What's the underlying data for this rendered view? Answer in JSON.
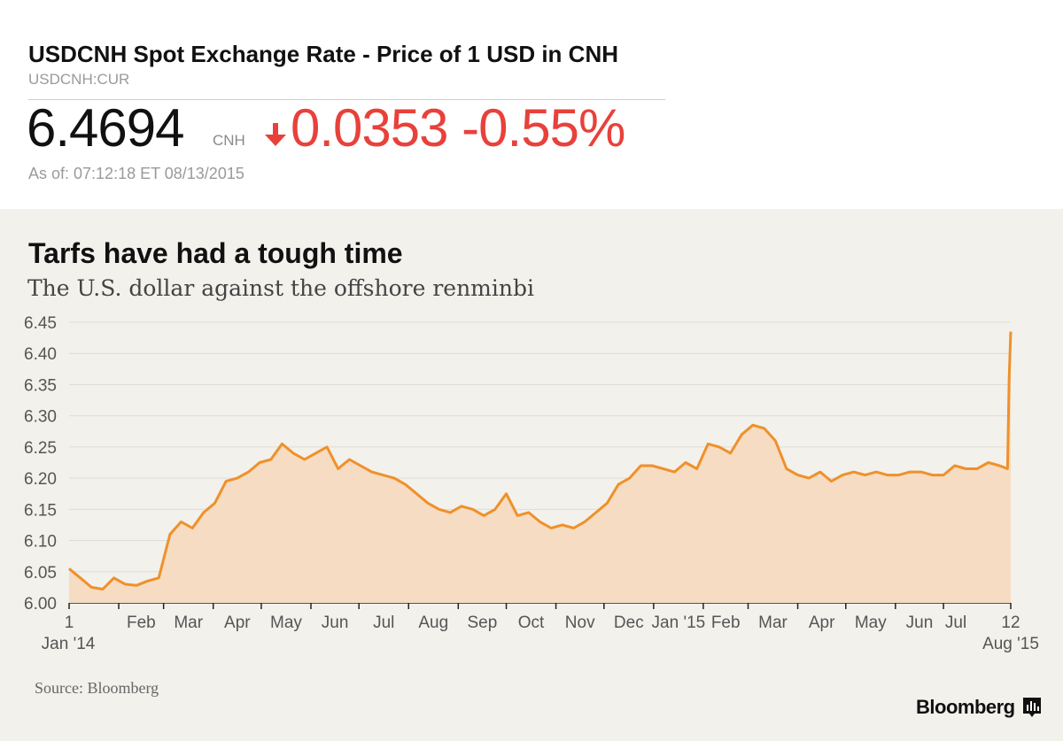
{
  "quote": {
    "title": "USDCNH Spot Exchange Rate - Price of 1 USD in CNH",
    "ticker": "USDCNH:CUR",
    "price": "6.4694",
    "currency": "CNH",
    "change": "0.0353 -0.55%",
    "as_of": "As of: 07:12:18 ET 08/13/2015",
    "change_color": "#e8413b",
    "arrow_icon": "down-arrow-icon"
  },
  "chart_data": {
    "type": "area",
    "title": "Tarfs have had a tough time",
    "subtitle": "The U.S. dollar against the offshore renminbi",
    "xlabel": "",
    "ylabel": "",
    "ylim": [
      6.0,
      6.45
    ],
    "yticks": [
      "6.45",
      "6.40",
      "6.35",
      "6.30",
      "6.25",
      "6.20",
      "6.15",
      "6.10",
      "6.05",
      "6.00"
    ],
    "xticks": [
      {
        "label": "1",
        "sub": "Jan '14",
        "date": "2014-01-01"
      },
      {
        "label": "Feb",
        "date": "2014-02-01"
      },
      {
        "label": "Mar",
        "date": "2014-03-01"
      },
      {
        "label": "Apr",
        "date": "2014-04-01"
      },
      {
        "label": "May",
        "date": "2014-05-01"
      },
      {
        "label": "Jun",
        "date": "2014-06-01"
      },
      {
        "label": "Jul",
        "date": "2014-07-01"
      },
      {
        "label": "Aug",
        "date": "2014-08-01"
      },
      {
        "label": "Sep",
        "date": "2014-09-01"
      },
      {
        "label": "Oct",
        "date": "2014-10-01"
      },
      {
        "label": "Nov",
        "date": "2014-11-01"
      },
      {
        "label": "Dec",
        "date": "2014-12-01"
      },
      {
        "label": "Jan '15",
        "date": "2015-01-01"
      },
      {
        "label": "Feb",
        "date": "2015-02-01"
      },
      {
        "label": "Mar",
        "date": "2015-03-01"
      },
      {
        "label": "Apr",
        "date": "2015-04-01"
      },
      {
        "label": "May",
        "date": "2015-05-01"
      },
      {
        "label": "Jun",
        "date": "2015-06-01"
      },
      {
        "label": "Jul",
        "date": "2015-07-01"
      },
      {
        "label": "12",
        "sub": "Aug '15",
        "date": "2015-08-12"
      }
    ],
    "grid": true,
    "line_color": "#f0902a",
    "fill_color": "#f5dcc2",
    "series": [
      {
        "x": [
          "2014-01-01",
          "2014-01-08",
          "2014-01-15",
          "2014-01-22",
          "2014-01-29",
          "2014-02-05",
          "2014-02-12",
          "2014-02-19",
          "2014-02-26",
          "2014-03-05",
          "2014-03-12",
          "2014-03-19",
          "2014-03-26",
          "2014-04-02",
          "2014-04-09",
          "2014-04-16",
          "2014-04-23",
          "2014-04-30",
          "2014-05-07",
          "2014-05-14",
          "2014-05-21",
          "2014-05-28",
          "2014-06-04",
          "2014-06-11",
          "2014-06-18",
          "2014-06-25",
          "2014-07-02",
          "2014-07-09",
          "2014-07-16",
          "2014-07-23",
          "2014-07-30",
          "2014-08-06",
          "2014-08-13",
          "2014-08-20",
          "2014-08-27",
          "2014-09-03",
          "2014-09-10",
          "2014-09-17",
          "2014-09-24",
          "2014-10-01",
          "2014-10-08",
          "2014-10-15",
          "2014-10-22",
          "2014-10-29",
          "2014-11-05",
          "2014-11-12",
          "2014-11-19",
          "2014-11-26",
          "2014-12-03",
          "2014-12-10",
          "2014-12-17",
          "2014-12-24",
          "2014-12-31",
          "2015-01-07",
          "2015-01-14",
          "2015-01-21",
          "2015-01-28",
          "2015-02-04",
          "2015-02-11",
          "2015-02-18",
          "2015-02-25",
          "2015-03-04",
          "2015-03-11",
          "2015-03-18",
          "2015-03-25",
          "2015-04-01",
          "2015-04-08",
          "2015-04-15",
          "2015-04-22",
          "2015-04-29",
          "2015-05-06",
          "2015-05-13",
          "2015-05-20",
          "2015-05-27",
          "2015-06-03",
          "2015-06-10",
          "2015-06-17",
          "2015-06-24",
          "2015-07-01",
          "2015-07-08",
          "2015-07-15",
          "2015-07-22",
          "2015-07-29",
          "2015-08-05",
          "2015-08-10",
          "2015-08-11",
          "2015-08-12"
        ],
        "values": [
          6.055,
          6.04,
          6.025,
          6.022,
          6.04,
          6.03,
          6.028,
          6.035,
          6.04,
          6.11,
          6.13,
          6.12,
          6.145,
          6.16,
          6.195,
          6.2,
          6.21,
          6.225,
          6.23,
          6.255,
          6.24,
          6.23,
          6.24,
          6.25,
          6.215,
          6.23,
          6.22,
          6.21,
          6.205,
          6.2,
          6.19,
          6.175,
          6.16,
          6.15,
          6.145,
          6.155,
          6.15,
          6.14,
          6.15,
          6.175,
          6.14,
          6.145,
          6.13,
          6.12,
          6.125,
          6.12,
          6.13,
          6.145,
          6.16,
          6.19,
          6.2,
          6.22,
          6.22,
          6.215,
          6.21,
          6.225,
          6.215,
          6.255,
          6.25,
          6.24,
          6.27,
          6.285,
          6.28,
          6.26,
          6.215,
          6.205,
          6.2,
          6.21,
          6.195,
          6.205,
          6.21,
          6.205,
          6.21,
          6.205,
          6.205,
          6.21,
          6.21,
          6.205,
          6.205,
          6.22,
          6.215,
          6.215,
          6.225,
          6.22,
          6.215,
          6.36,
          6.435
        ]
      }
    ]
  },
  "footer": {
    "source": "Source: Bloomberg",
    "brand": "Bloomberg",
    "brand_icon": "bloomberg-chart-icon"
  }
}
